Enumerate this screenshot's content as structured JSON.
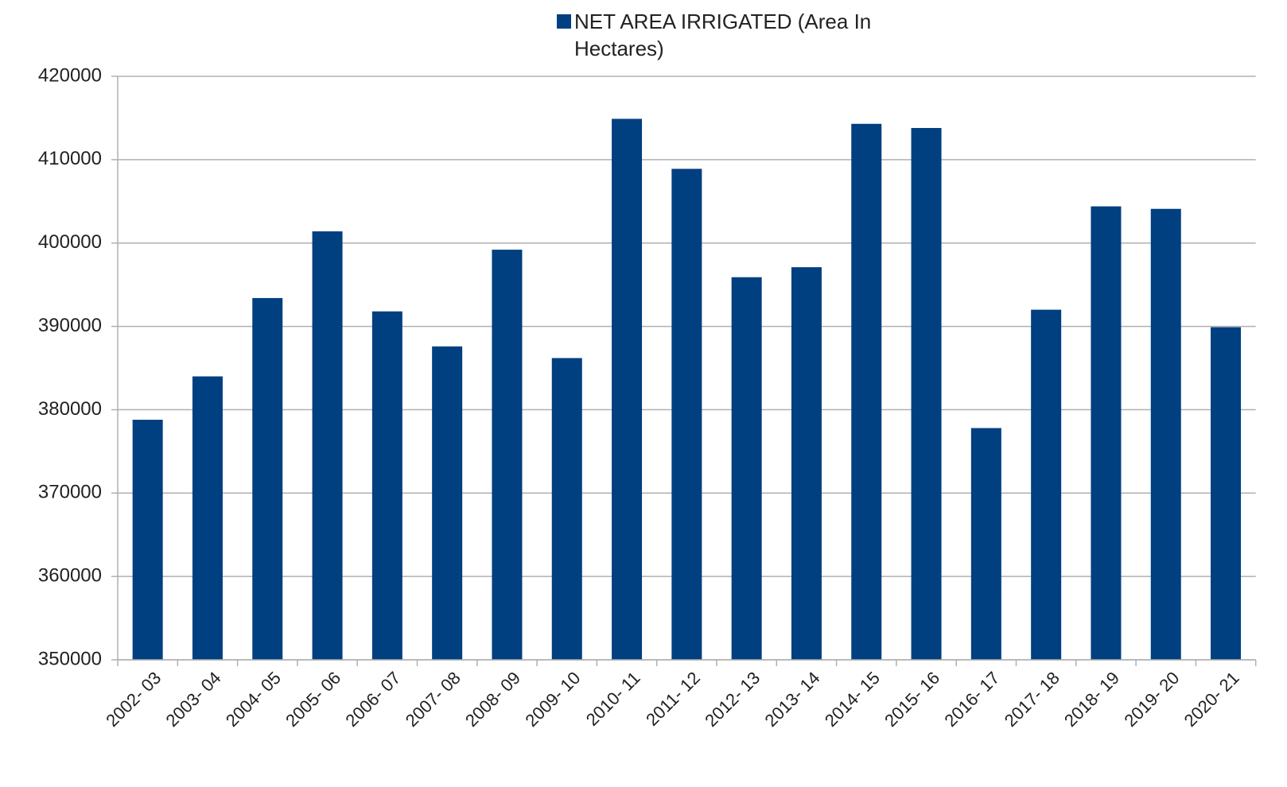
{
  "chart_data": {
    "type": "bar",
    "series": [
      {
        "name": "NET AREA IRRIGATED (Area In Hectares)",
        "color": "#003f80",
        "values": [
          378800,
          384000,
          393400,
          401400,
          391800,
          387600,
          399200,
          386200,
          414900,
          408900,
          395900,
          397100,
          414300,
          413800,
          377800,
          392000,
          404400,
          404100,
          389900
        ]
      }
    ],
    "categories": [
      "2002- 03",
      "2003- 04",
      "2004- 05",
      "2005- 06",
      "2006- 07",
      "2007- 08",
      "2008- 09",
      "2009- 10",
      "2010- 11",
      "2011- 12",
      "2012- 13",
      "2013- 14",
      "2014- 15",
      "2015- 16",
      "2016- 17",
      "2017- 18",
      "2018- 19",
      "2019- 20",
      "2020- 21"
    ],
    "ylim": [
      350000,
      420000
    ],
    "yticks": [
      350000,
      360000,
      370000,
      380000,
      390000,
      400000,
      410000,
      420000
    ],
    "grid": true,
    "legend": "top"
  }
}
